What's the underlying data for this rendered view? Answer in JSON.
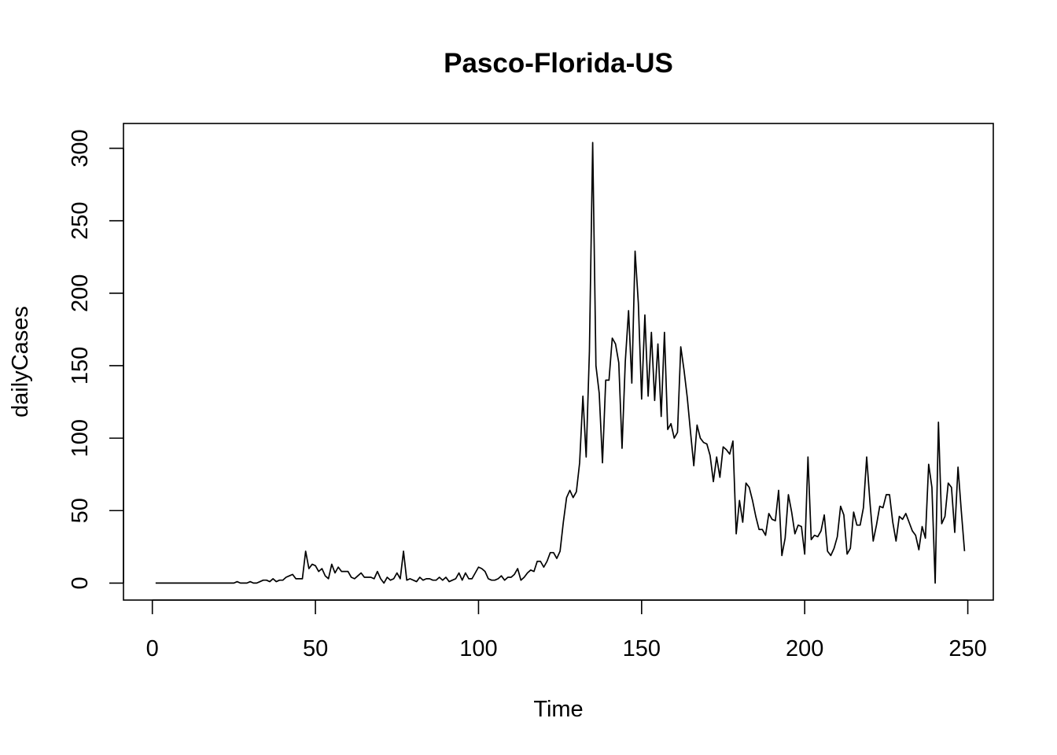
{
  "chart_data": {
    "type": "line",
    "title": "Pasco-Florida-US",
    "xlabel": "Time",
    "ylabel": "dailyCases",
    "xlim": [
      1,
      248
    ],
    "ylim": [
      0,
      304
    ],
    "x_ticks": [
      0,
      50,
      100,
      150,
      200,
      250
    ],
    "y_ticks": [
      0,
      50,
      100,
      150,
      200,
      250,
      300
    ],
    "grid": false,
    "series": [
      {
        "values": [
          0,
          0,
          0,
          0,
          0,
          0,
          0,
          0,
          0,
          0,
          0,
          0,
          0,
          0,
          0,
          0,
          0,
          0,
          0,
          0,
          0,
          0,
          0,
          0,
          0,
          1,
          0,
          0,
          0,
          1,
          0,
          0,
          1,
          2,
          2,
          1,
          3,
          1,
          2,
          2,
          4,
          5,
          6,
          3,
          3,
          3,
          22,
          10,
          13,
          12,
          8,
          10,
          5,
          3,
          13,
          7,
          11,
          8,
          8,
          8,
          4,
          3,
          5,
          7,
          4,
          4,
          4,
          3,
          8,
          3,
          0,
          4,
          2,
          3,
          7,
          3,
          22,
          2,
          3,
          2,
          1,
          4,
          2,
          3,
          3,
          2,
          2,
          4,
          2,
          4,
          1,
          2,
          3,
          7,
          2,
          7,
          3,
          3,
          7,
          11,
          10,
          8,
          3,
          2,
          2,
          3,
          5,
          2,
          4,
          4,
          6,
          10,
          2,
          4,
          7,
          9,
          8,
          15,
          15,
          11,
          15,
          21,
          21,
          17,
          22,
          42,
          59,
          64,
          59,
          63,
          83,
          129,
          87,
          160,
          304,
          150,
          131,
          83,
          140,
          140,
          169,
          165,
          152,
          93,
          153,
          188,
          138,
          229,
          193,
          127,
          185,
          129,
          173,
          126,
          165,
          115,
          173,
          106,
          110,
          100,
          104,
          163,
          147,
          128,
          104,
          81,
          109,
          100,
          97,
          96,
          88,
          70,
          87,
          73,
          94,
          92,
          89,
          98,
          34,
          57,
          42,
          69,
          66,
          57,
          46,
          37,
          37,
          33,
          48,
          44,
          43,
          64,
          19,
          31,
          61,
          49,
          34,
          40,
          39,
          20,
          87,
          30,
          33,
          32,
          36,
          47,
          22,
          19,
          24,
          32,
          53,
          47,
          20,
          24,
          49,
          40,
          40,
          52,
          87,
          56,
          29,
          40,
          53,
          52,
          61,
          61,
          42,
          29,
          46,
          44,
          48,
          42,
          36,
          33,
          23,
          39,
          31,
          82,
          66,
          0,
          111,
          41,
          46,
          69,
          66,
          35,
          80,
          50,
          22
        ]
      }
    ]
  }
}
